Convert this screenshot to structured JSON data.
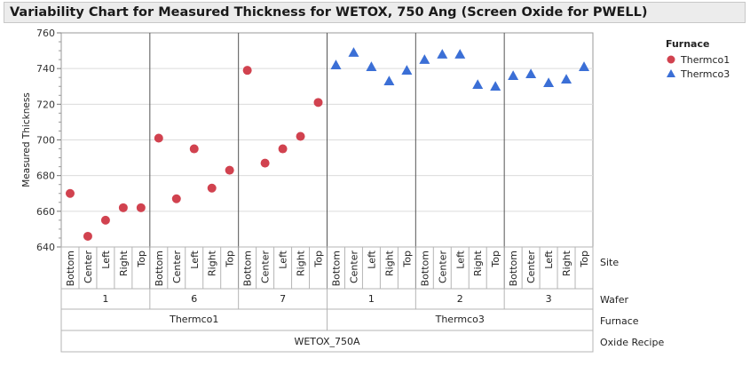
{
  "title": "Variability Chart for Measured Thickness for WETOX, 750 Ang (Screen Oxide for PWELL)",
  "colors": {
    "Thermco1": "#d1424f",
    "Thermco3": "#3b6fd6"
  },
  "legend": {
    "title": "Furnace",
    "items": [
      {
        "name": "Thermco1",
        "marker": "circle"
      },
      {
        "name": "Thermco3",
        "marker": "triangle"
      }
    ]
  },
  "chart_data": {
    "type": "scatter",
    "title": "Variability Chart for Measured Thickness for WETOX, 750 Ang (Screen Oxide for PWELL)",
    "ylabel": "Measured Thickness",
    "ylim": [
      640,
      760
    ],
    "yticks": [
      640,
      660,
      680,
      700,
      720,
      740,
      760
    ],
    "grid": true,
    "legend_position": "top-right",
    "levels": [
      "Site",
      "Wafer",
      "Furnace",
      "Oxide Recipe"
    ],
    "sites": [
      "Bottom",
      "Center",
      "Left",
      "Right",
      "Top"
    ],
    "groups": [
      {
        "furnace": "Thermco1",
        "wafer": "1",
        "values": [
          670,
          646,
          655,
          662,
          662
        ]
      },
      {
        "furnace": "Thermco1",
        "wafer": "6",
        "values": [
          701,
          667,
          695,
          673,
          683
        ]
      },
      {
        "furnace": "Thermco1",
        "wafer": "7",
        "values": [
          739,
          687,
          695,
          702,
          721
        ]
      },
      {
        "furnace": "Thermco3",
        "wafer": "1",
        "values": [
          742,
          749,
          741,
          733,
          739
        ]
      },
      {
        "furnace": "Thermco3",
        "wafer": "2",
        "values": [
          745,
          748,
          748,
          731,
          730
        ]
      },
      {
        "furnace": "Thermco3",
        "wafer": "3",
        "values": [
          736,
          737,
          732,
          734,
          741
        ]
      }
    ],
    "furnaces": [
      "Thermco1",
      "Thermco3"
    ],
    "oxide_recipe": "WETOX_750A"
  }
}
